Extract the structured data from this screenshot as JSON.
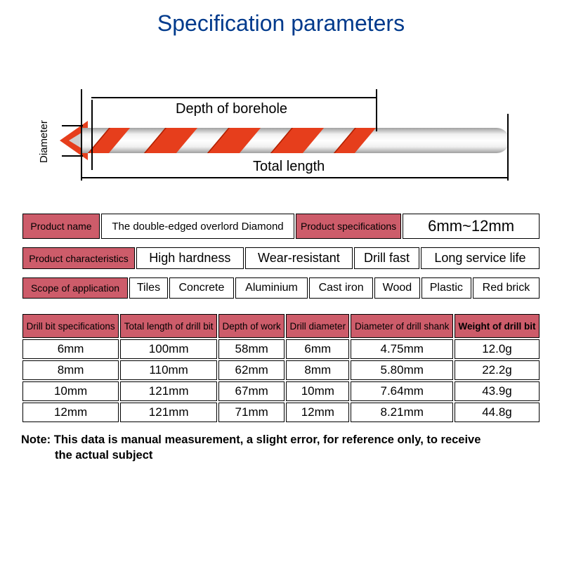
{
  "title": "Specification parameters",
  "diagram": {
    "depth_label": "Depth of borehole",
    "total_label": "Total length",
    "diameter_label": "Diameter",
    "colors": {
      "flute": "#e63e1c",
      "shaft_light": "#f0f0f0",
      "shaft_dark": "#a0a0a0",
      "line": "#000000"
    }
  },
  "info_row1": {
    "name_hdr": "Product name",
    "name_val": "The double-edged overlord Diamond",
    "spec_hdr": "Product specifications",
    "spec_val": "6mm~12mm"
  },
  "info_row2": {
    "char_hdr": "Product characteristics",
    "chars": [
      "High hardness",
      "Wear-resistant",
      "Drill fast",
      "Long service life"
    ]
  },
  "info_row3": {
    "scope_hdr": "Scope of application",
    "scopes": [
      "Tiles",
      "Concrete",
      "Aluminium",
      "Cast iron",
      "Wood",
      "Plastic",
      "Red brick"
    ]
  },
  "spec_table": {
    "headers": [
      "Drill bit specifications",
      "Total length of drill bit",
      "Depth of work",
      "Drill diameter",
      "Diameter of drill shank",
      "Weight of drill bit"
    ],
    "rows": [
      [
        "6mm",
        "100mm",
        "58mm",
        "6mm",
        "4.75mm",
        "12.0g"
      ],
      [
        "8mm",
        "110mm",
        "62mm",
        "8mm",
        "5.80mm",
        "22.2g"
      ],
      [
        "10mm",
        "121mm",
        "67mm",
        "10mm",
        "7.64mm",
        "43.9g"
      ],
      [
        "12mm",
        "121mm",
        "71mm",
        "12mm",
        "8.21mm",
        "44.8g"
      ]
    ]
  },
  "note_line1": "Note: This data is manual measurement, a slight error, for reference only, to receive",
  "note_line2": "the actual subject",
  "colors": {
    "title": "#003a8c",
    "header_bg": "#cd5c6a",
    "border": "#000000",
    "accent": "#e63e1c"
  }
}
